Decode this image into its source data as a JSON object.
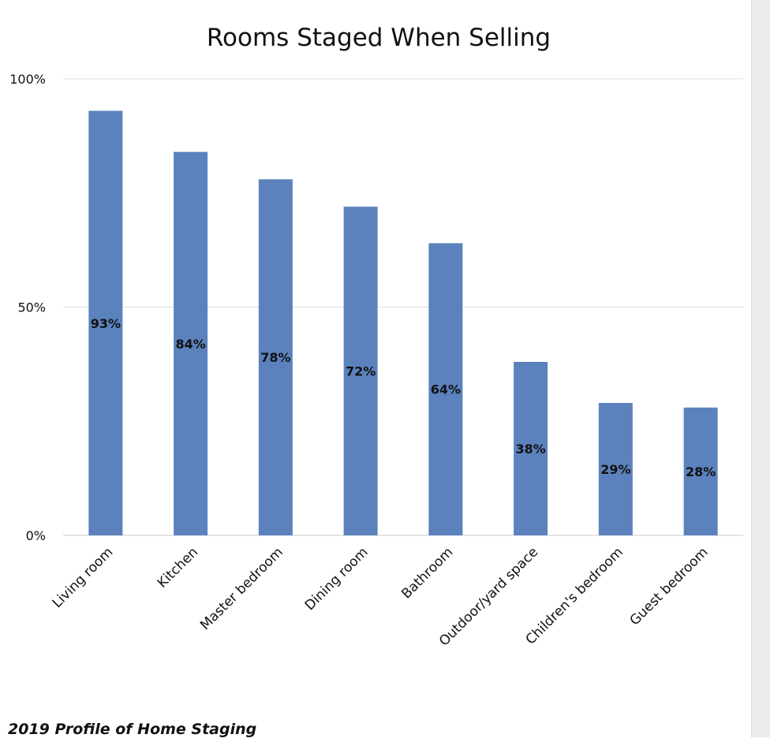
{
  "chart_data": {
    "type": "bar",
    "title": "Rooms Staged When Selling",
    "categories": [
      "Living room",
      "Kitchen",
      "Master bedroom",
      "Dining room",
      "Bathroom",
      "Outdoor/yard space",
      "Children's bedroom",
      "Guest bedroom"
    ],
    "values": [
      93,
      84,
      78,
      72,
      64,
      38,
      29,
      28
    ],
    "data_labels": [
      "93%",
      "84%",
      "78%",
      "72%",
      "64%",
      "38%",
      "29%",
      "28%"
    ],
    "y_ticks": [
      0,
      50,
      100
    ],
    "y_tick_labels": [
      "0%",
      "50%",
      "100%"
    ],
    "ylim": [
      0,
      100
    ],
    "bar_color": "#5b82bd",
    "grid": true,
    "legend": "none"
  },
  "source_note": "2019 Profile of Home Staging"
}
